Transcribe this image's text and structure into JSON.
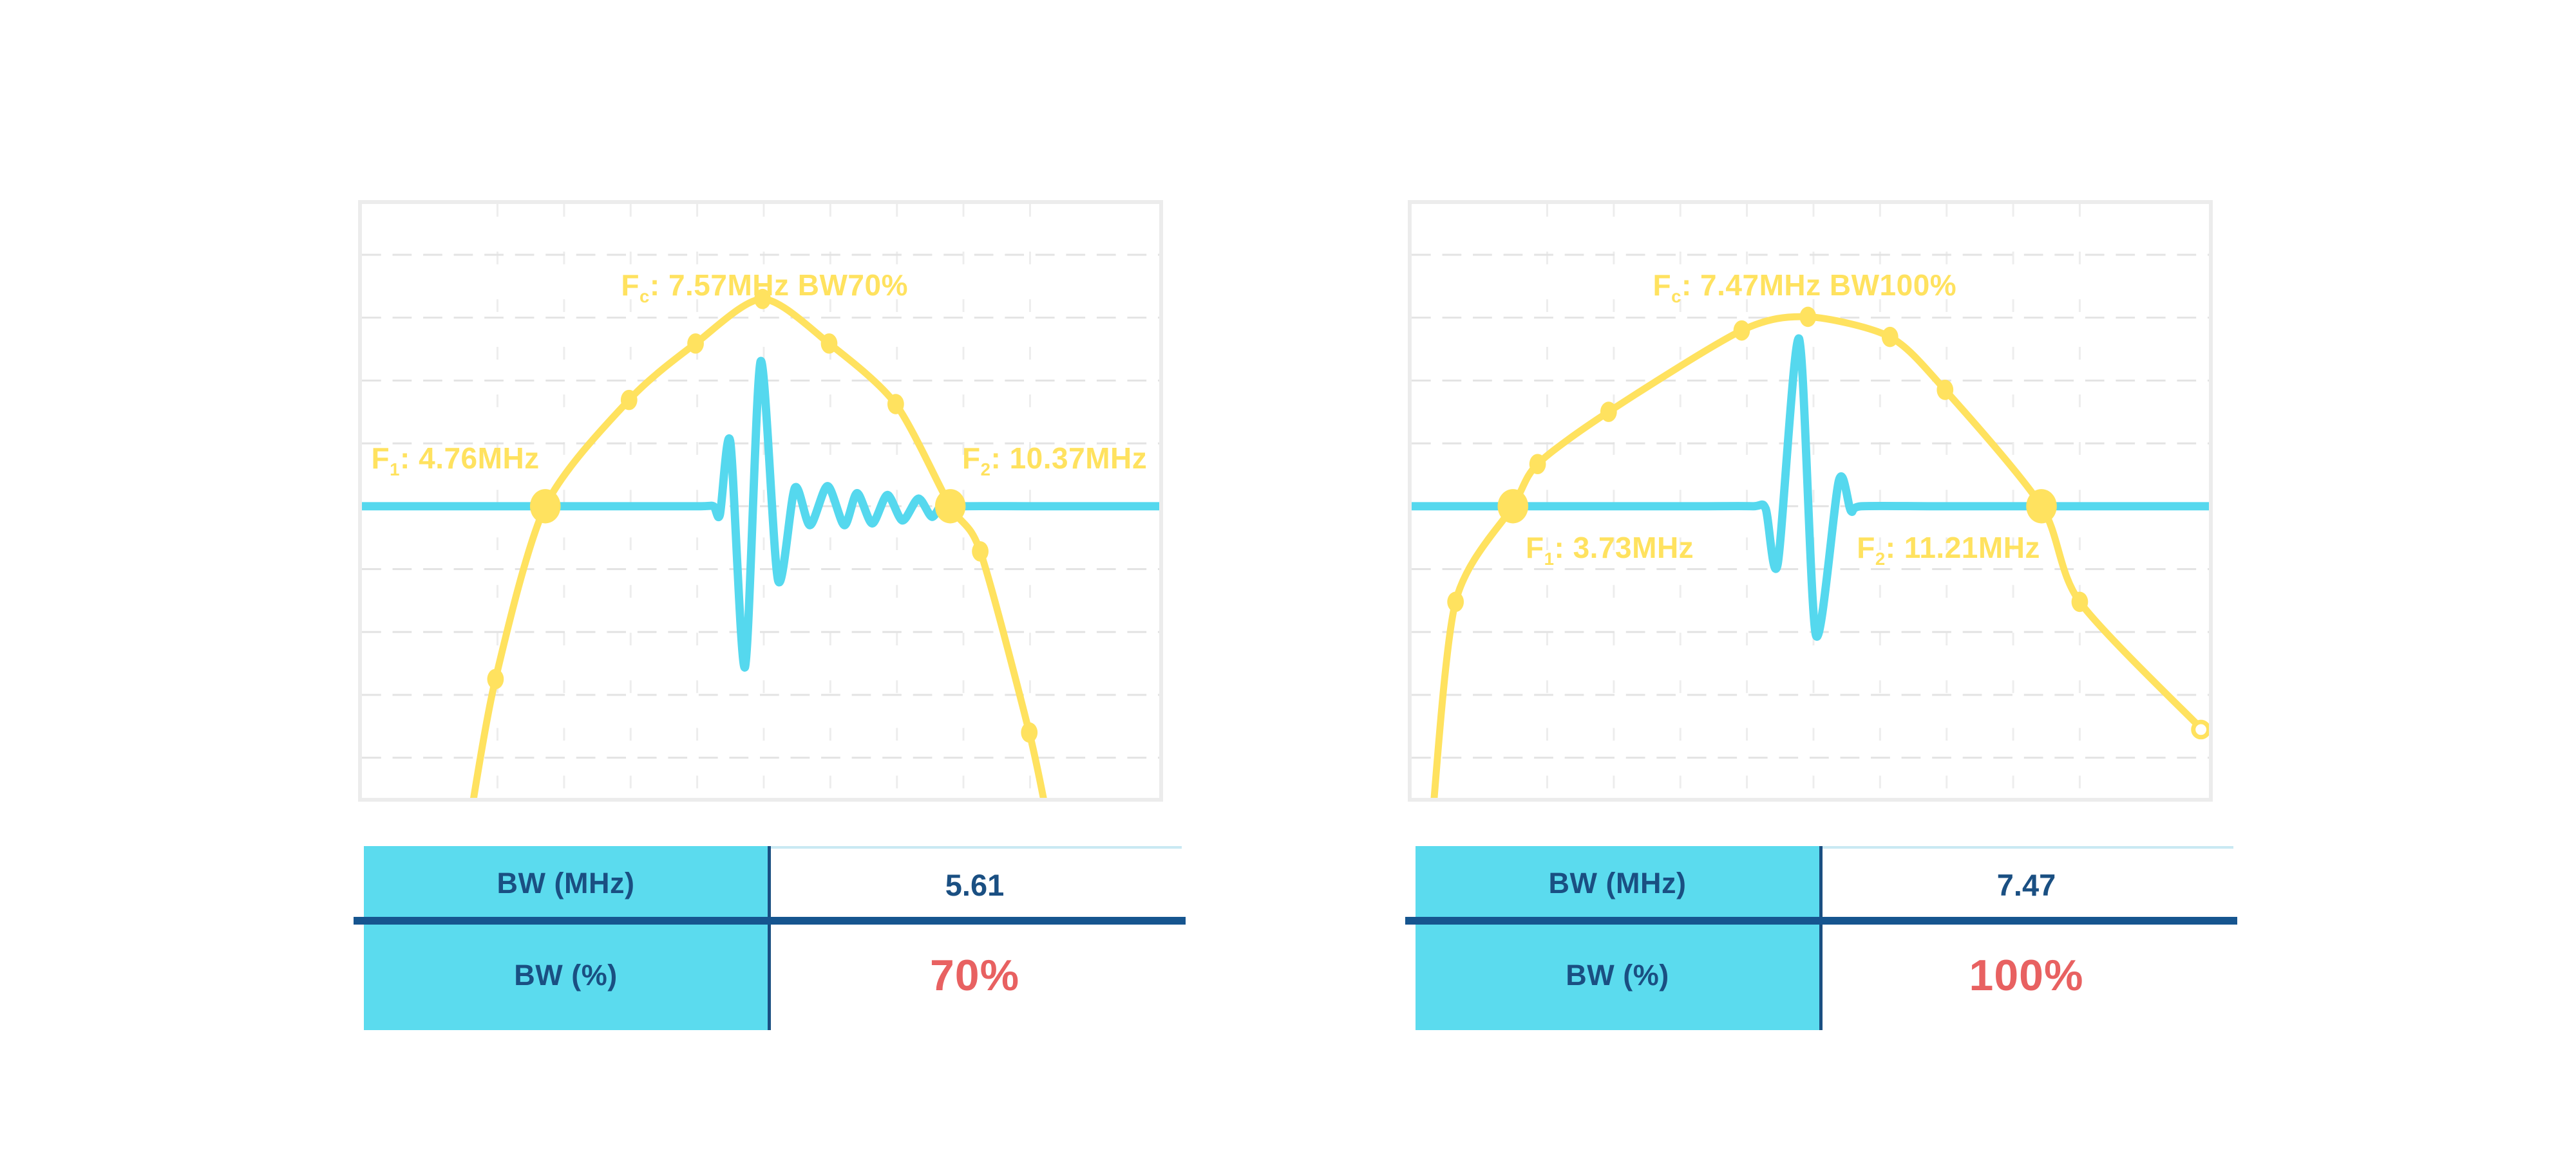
{
  "page": {
    "background": "#FFFFFF"
  },
  "colors": {
    "yellow": "#FFE25F",
    "cyan": "#55D8EE",
    "table_cyan": "#5BDBEE",
    "navy_text": "#1A4F82",
    "navy_line": "#16558F",
    "red": "#E86161",
    "frame_gray": "#ECECEC",
    "grid_h": "#E3E3E3",
    "grid_v": "#EDEDED",
    "value_topline": "#C9E9F3"
  },
  "plot_grid": {
    "h_fracs": [
      0.0856,
      0.1914,
      0.2973,
      0.4032,
      0.509,
      0.6149,
      0.7207,
      0.8266,
      0.9324
    ],
    "v_fracs": [
      0.17,
      0.2535,
      0.337,
      0.4205,
      0.504,
      0.5875,
      0.671,
      0.7545,
      0.838
    ]
  },
  "chart_data": [
    {
      "type": "line",
      "title": "Fc: 7.57MHz BW70%",
      "fc_mhz": 7.57,
      "f1_mhz": 4.76,
      "f2_mhz": 10.37,
      "bw_mhz": 5.61,
      "bw_pct": 70,
      "legend": "none",
      "axes_visible": false,
      "grid": true,
      "labels": {
        "fc": {
          "pre": "F",
          "sub": "c",
          "post": ": 7.57MHz BW70%"
        },
        "f1": {
          "pre": "F",
          "sub": "1",
          "post": ": 4.76MHz"
        },
        "f2": {
          "pre": "F",
          "sub": "2",
          "post": ": 10.37MHz"
        }
      },
      "spectrum": {
        "name": "frequency spectrum",
        "path_points": [
          [
            0.134,
            1.05
          ],
          [
            0.1675,
            0.8
          ],
          [
            0.23,
            0.509
          ],
          [
            0.335,
            0.33
          ],
          [
            0.4185,
            0.235
          ],
          [
            0.5025,
            0.16
          ],
          [
            0.586,
            0.235
          ],
          [
            0.6695,
            0.337
          ],
          [
            0.738,
            0.509
          ],
          [
            0.7755,
            0.585
          ],
          [
            0.837,
            0.89
          ],
          [
            0.862,
            1.05
          ]
        ],
        "markers_small": [
          [
            0.1675,
            0.8
          ],
          [
            0.335,
            0.33
          ],
          [
            0.4185,
            0.235
          ],
          [
            0.5025,
            0.16
          ],
          [
            0.586,
            0.235
          ],
          [
            0.6695,
            0.337
          ],
          [
            0.7755,
            0.585
          ],
          [
            0.837,
            0.89
          ]
        ],
        "markers_large": [
          [
            0.23,
            0.509
          ],
          [
            0.738,
            0.509
          ]
        ],
        "end_ring": null
      },
      "pulse": {
        "name": "pulse-echo waveform",
        "baseline_frac": 0.509,
        "points": [
          [
            0,
            0.509
          ],
          [
            0.12,
            0.509
          ],
          [
            0.24,
            0.509
          ],
          [
            0.35,
            0.509
          ],
          [
            0.425,
            0.509
          ],
          [
            0.441,
            0.509
          ],
          [
            0.449,
            0.523
          ],
          [
            0.462,
            0.4
          ],
          [
            0.4805,
            0.78
          ],
          [
            0.5,
            0.265
          ],
          [
            0.522,
            0.634
          ],
          [
            0.543,
            0.478
          ],
          [
            0.562,
            0.541
          ],
          [
            0.584,
            0.475
          ],
          [
            0.605,
            0.541
          ],
          [
            0.621,
            0.487
          ],
          [
            0.64,
            0.538
          ],
          [
            0.659,
            0.49
          ],
          [
            0.678,
            0.533
          ],
          [
            0.698,
            0.496
          ],
          [
            0.715,
            0.527
          ],
          [
            0.729,
            0.502
          ],
          [
            0.741,
            0.512
          ],
          [
            0.756,
            0.509
          ],
          [
            0.85,
            0.509
          ],
          [
            1,
            0.509
          ]
        ]
      },
      "table": {
        "rows": [
          {
            "label": "BW (MHz)",
            "value": "5.61",
            "style": "navy"
          },
          {
            "label": "BW (%)",
            "value": "70%",
            "style": "red"
          }
        ]
      }
    },
    {
      "type": "line",
      "title": "Fc: 7.47MHz BW100%",
      "fc_mhz": 7.47,
      "f1_mhz": 3.73,
      "f2_mhz": 11.21,
      "bw_mhz": 7.47,
      "bw_pct": 100,
      "legend": "none",
      "axes_visible": false,
      "grid": true,
      "labels": {
        "fc": {
          "pre": "F",
          "sub": "c",
          "post": ": 7.47MHz BW100%"
        },
        "f1": {
          "pre": "F",
          "sub": "1",
          "post": ": 3.73MHz"
        },
        "f2": {
          "pre": "F",
          "sub": "2",
          "post": ": 11.21MHz"
        }
      },
      "spectrum": {
        "name": "frequency spectrum",
        "path_points": [
          [
            0.025,
            1.05
          ],
          [
            0.055,
            0.67
          ],
          [
            0.127,
            0.509
          ],
          [
            0.158,
            0.438
          ],
          [
            0.247,
            0.35
          ],
          [
            0.414,
            0.213
          ],
          [
            0.497,
            0.19
          ],
          [
            0.6,
            0.224
          ],
          [
            0.669,
            0.313
          ],
          [
            0.79,
            0.509
          ],
          [
            0.838,
            0.67
          ],
          [
            0.993,
            0.887
          ]
        ],
        "markers_small": [
          [
            0.055,
            0.67
          ],
          [
            0.158,
            0.438
          ],
          [
            0.247,
            0.35
          ],
          [
            0.414,
            0.213
          ],
          [
            0.497,
            0.19
          ],
          [
            0.6,
            0.224
          ],
          [
            0.669,
            0.313
          ],
          [
            0.838,
            0.67
          ]
        ],
        "markers_large": [
          [
            0.127,
            0.509
          ],
          [
            0.79,
            0.509
          ]
        ],
        "end_ring": [
          0.99,
          0.885
        ]
      },
      "pulse": {
        "name": "pulse-echo waveform",
        "baseline_frac": 0.509,
        "points": [
          [
            0,
            0.509
          ],
          [
            0.12,
            0.509
          ],
          [
            0.24,
            0.509
          ],
          [
            0.36,
            0.509
          ],
          [
            0.428,
            0.509
          ],
          [
            0.444,
            0.513
          ],
          [
            0.459,
            0.607
          ],
          [
            0.486,
            0.227
          ],
          [
            0.507,
            0.726
          ],
          [
            0.536,
            0.465
          ],
          [
            0.551,
            0.517
          ],
          [
            0.564,
            0.509
          ],
          [
            0.66,
            0.509
          ],
          [
            0.82,
            0.509
          ],
          [
            1,
            0.509
          ]
        ]
      },
      "table": {
        "rows": [
          {
            "label": "BW (MHz)",
            "value": "7.47",
            "style": "navy"
          },
          {
            "label": "BW (%)",
            "value": "100%",
            "style": "red"
          }
        ]
      }
    }
  ]
}
